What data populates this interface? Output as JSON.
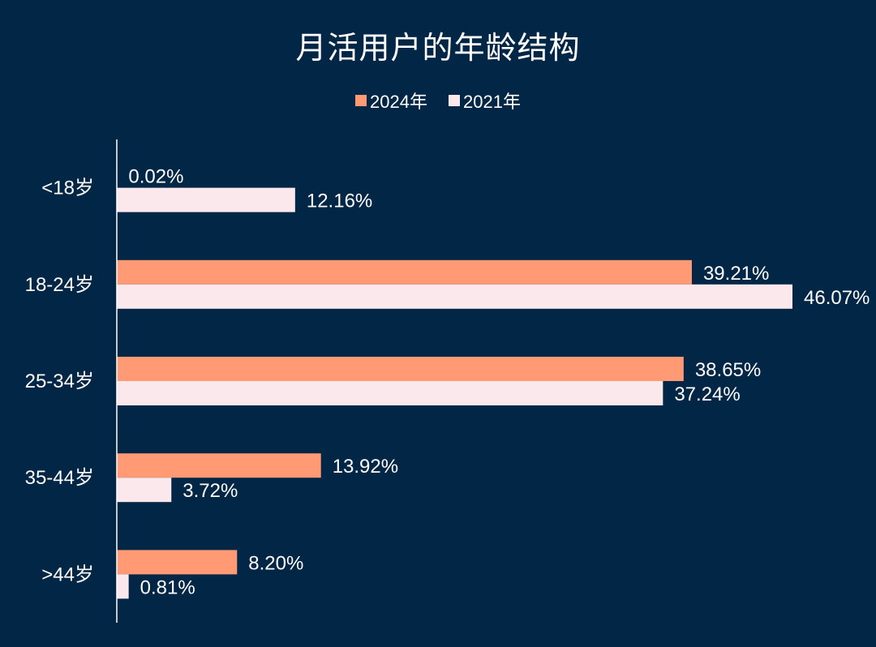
{
  "chart_data": {
    "type": "bar",
    "orientation": "horizontal",
    "title": "月活用户的年龄结构",
    "categories": [
      "<18岁",
      "18-24岁",
      "25-34岁",
      "35-44岁",
      ">44岁"
    ],
    "series": [
      {
        "name": "2024年",
        "values": [
          0.02,
          39.21,
          38.65,
          13.92,
          8.2
        ],
        "labels": [
          "0.02%",
          "39.21%",
          "38.65%",
          "13.92%",
          "8.20%"
        ],
        "color": "#ff9a74"
      },
      {
        "name": "2021年",
        "values": [
          12.16,
          46.07,
          37.24,
          3.72,
          0.81
        ],
        "labels": [
          "12.16%",
          "46.07%",
          "37.24%",
          "3.72%",
          "0.81%"
        ],
        "color": "#fbe8ec"
      }
    ],
    "xlim": [
      0,
      46.07
    ],
    "value_unit": "%",
    "legend_position": "top",
    "grid": false,
    "x_axis_visible": false
  },
  "colors": {
    "background": "#022645",
    "text": "#ffffff",
    "axis": "#ffffff"
  }
}
